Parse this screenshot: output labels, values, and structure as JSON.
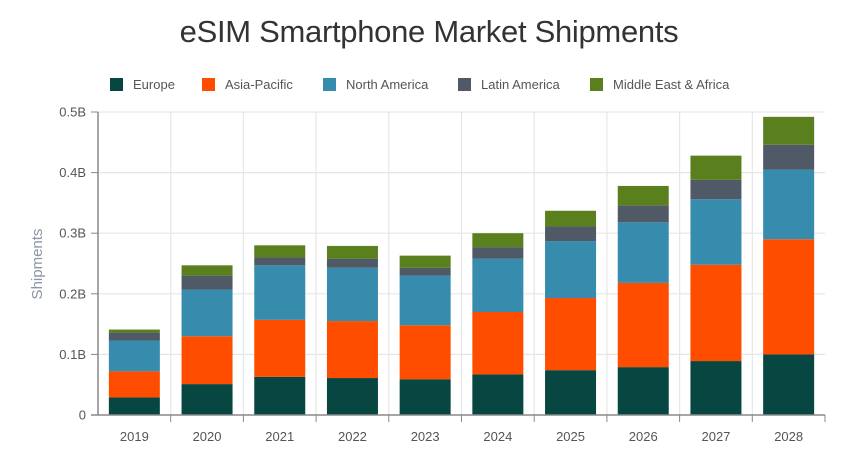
{
  "chart_data": {
    "type": "bar",
    "stacked": true,
    "title": "eSIM Smartphone Market Shipments",
    "xlabel": "",
    "ylabel": "Shipments",
    "ylim": [
      0,
      0.5
    ],
    "y_unit": "B",
    "yticks": [
      0,
      0.1,
      0.2,
      0.3,
      0.4,
      0.5
    ],
    "ytick_labels": [
      "0",
      "0.1B",
      "0.2B",
      "0.3B",
      "0.4B",
      "0.5B"
    ],
    "grid": true,
    "legend_position": "top",
    "categories": [
      "2019",
      "2020",
      "2021",
      "2022",
      "2023",
      "2024",
      "2025",
      "2026",
      "2027",
      "2028"
    ],
    "series": [
      {
        "name": "Europe",
        "color": "#084641",
        "values": [
          0.029,
          0.051,
          0.063,
          0.061,
          0.059,
          0.067,
          0.074,
          0.079,
          0.089,
          0.1
        ]
      },
      {
        "name": "Asia-Pacific",
        "color": "#FF4D00",
        "values": [
          0.043,
          0.079,
          0.094,
          0.094,
          0.089,
          0.103,
          0.119,
          0.139,
          0.159,
          0.19
        ]
      },
      {
        "name": "North America",
        "color": "#378BAD",
        "values": [
          0.051,
          0.077,
          0.09,
          0.088,
          0.082,
          0.088,
          0.094,
          0.1,
          0.108,
          0.115
        ]
      },
      {
        "name": "Latin America",
        "color": "#4F5A66",
        "values": [
          0.013,
          0.023,
          0.013,
          0.015,
          0.013,
          0.019,
          0.024,
          0.028,
          0.032,
          0.041
        ]
      },
      {
        "name": "Middle East & Africa",
        "color": "#5A801E",
        "values": [
          0.005,
          0.017,
          0.02,
          0.021,
          0.02,
          0.023,
          0.026,
          0.032,
          0.04,
          0.046
        ]
      }
    ]
  }
}
